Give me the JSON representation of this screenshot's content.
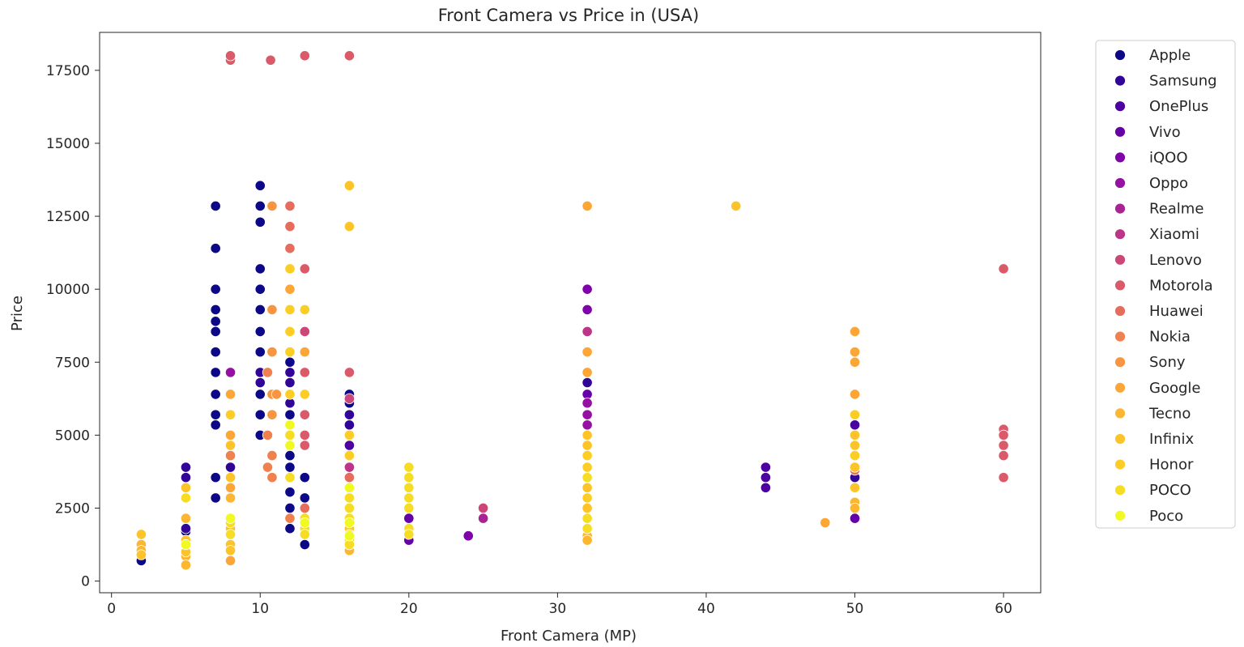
{
  "chart_data": {
    "type": "scatter",
    "title": "Front Camera vs Price in (USA)",
    "xlabel": "Front Camera (MP)",
    "ylabel": "Price",
    "xlim": [
      -0.8,
      62.5
    ],
    "ylim": [
      -400,
      18800
    ],
    "xticks": [
      0,
      10,
      20,
      30,
      40,
      50,
      60
    ],
    "yticks": [
      0,
      2500,
      5000,
      7500,
      10000,
      12500,
      15000,
      17500
    ],
    "grid": false,
    "legend_position": "outside-right",
    "marker_edge_color": "#ffffff",
    "series": [
      {
        "name": "Apple",
        "color": "#0d0887",
        "points": [
          [
            2,
            700
          ],
          [
            5,
            1700
          ],
          [
            7,
            2850
          ],
          [
            7,
            3550
          ],
          [
            7,
            5350
          ],
          [
            7,
            5700
          ],
          [
            7,
            6400
          ],
          [
            7,
            7150
          ],
          [
            7,
            7850
          ],
          [
            7,
            8550
          ],
          [
            7,
            8900
          ],
          [
            7,
            9300
          ],
          [
            7,
            10000
          ],
          [
            7,
            11400
          ],
          [
            7,
            12850
          ],
          [
            10,
            13550
          ],
          [
            10,
            12850
          ],
          [
            10,
            12300
          ],
          [
            10,
            10700
          ],
          [
            10,
            10000
          ],
          [
            10,
            9300
          ],
          [
            10,
            8550
          ],
          [
            10,
            7850
          ],
          [
            10,
            7150
          ],
          [
            10,
            6400
          ],
          [
            10,
            5700
          ],
          [
            10,
            5000
          ],
          [
            12,
            7500
          ],
          [
            12,
            6400
          ],
          [
            12,
            5700
          ],
          [
            12,
            5000
          ],
          [
            12,
            4650
          ],
          [
            12,
            4300
          ],
          [
            12,
            3900
          ],
          [
            12,
            3050
          ],
          [
            12,
            2500
          ],
          [
            12,
            1800
          ],
          [
            13,
            3550
          ],
          [
            13,
            2850
          ],
          [
            13,
            2150
          ],
          [
            13,
            1800
          ],
          [
            13,
            1250
          ],
          [
            16,
            6400
          ],
          [
            16,
            6100
          ],
          [
            32,
            5700
          ]
        ]
      },
      {
        "name": "Samsung",
        "color": "#310597",
        "points": [
          [
            5,
            3900
          ],
          [
            5,
            3550
          ],
          [
            5,
            1800
          ],
          [
            8,
            3900
          ],
          [
            10,
            7150
          ],
          [
            10,
            6800
          ],
          [
            12,
            7150
          ],
          [
            12,
            6800
          ],
          [
            12,
            6100
          ],
          [
            12,
            5350
          ],
          [
            16,
            5700
          ],
          [
            16,
            5350
          ],
          [
            32,
            6800
          ],
          [
            32,
            6400
          ],
          [
            32,
            6100
          ],
          [
            50,
            3550
          ]
        ]
      },
      {
        "name": "OnePlus",
        "color": "#4c02a1",
        "points": [
          [
            8,
            3550
          ],
          [
            16,
            5000
          ],
          [
            16,
            4650
          ],
          [
            32,
            7150
          ],
          [
            44,
            3900
          ],
          [
            44,
            3550
          ],
          [
            44,
            3200
          ],
          [
            50,
            5350
          ]
        ]
      },
      {
        "name": "Vivo",
        "color": "#6600a7",
        "points": [
          [
            16,
            4300
          ],
          [
            20,
            2150
          ],
          [
            20,
            1400
          ],
          [
            32,
            6400
          ],
          [
            32,
            5700
          ],
          [
            50,
            2150
          ]
        ]
      },
      {
        "name": "iQOO",
        "color": "#7e03a8",
        "points": [
          [
            24,
            1550
          ],
          [
            32,
            10000
          ],
          [
            32,
            9300
          ]
        ]
      },
      {
        "name": "Oppo",
        "color": "#9511a1",
        "points": [
          [
            8,
            7150
          ],
          [
            16,
            4300
          ],
          [
            16,
            3900
          ],
          [
            16,
            3550
          ],
          [
            32,
            6100
          ],
          [
            32,
            5700
          ],
          [
            32,
            5350
          ]
        ]
      },
      {
        "name": "Realme",
        "color": "#aa2395",
        "points": [
          [
            16,
            3200
          ],
          [
            16,
            2850
          ],
          [
            25,
            2150
          ]
        ]
      },
      {
        "name": "Xiaomi",
        "color": "#bc3587",
        "points": [
          [
            16,
            3900
          ],
          [
            32,
            8550
          ],
          [
            32,
            5000
          ],
          [
            50,
            3900
          ]
        ]
      },
      {
        "name": "Lenovo",
        "color": "#cc4778",
        "points": [
          [
            13,
            8550
          ],
          [
            16,
            6250
          ],
          [
            25,
            2500
          ],
          [
            32,
            4650
          ]
        ]
      },
      {
        "name": "Motorola",
        "color": "#da5a6a",
        "points": [
          [
            8,
            17850
          ],
          [
            8,
            18000
          ],
          [
            10.7,
            17850
          ],
          [
            13,
            18000
          ],
          [
            16,
            18000
          ],
          [
            13,
            10700
          ],
          [
            13,
            7150
          ],
          [
            13,
            5700
          ],
          [
            13,
            5000
          ],
          [
            13,
            4650
          ],
          [
            16,
            7150
          ],
          [
            60,
            10700
          ],
          [
            60,
            5200
          ],
          [
            60,
            5000
          ],
          [
            60,
            4650
          ],
          [
            60,
            4300
          ],
          [
            60,
            3550
          ]
        ]
      },
      {
        "name": "Huawei",
        "color": "#e66c5c",
        "points": [
          [
            12,
            12850
          ],
          [
            12,
            12150
          ],
          [
            12,
            11400
          ],
          [
            13,
            2500
          ],
          [
            16,
            3550
          ],
          [
            50,
            3800
          ]
        ]
      },
      {
        "name": "Nokia",
        "color": "#f0804e",
        "points": [
          [
            8,
            4300
          ],
          [
            10.5,
            7150
          ],
          [
            10.5,
            5000
          ],
          [
            10.5,
            3900
          ],
          [
            10.8,
            4300
          ],
          [
            10.8,
            3550
          ],
          [
            12,
            2150
          ],
          [
            16,
            2500
          ]
        ]
      },
      {
        "name": "Sony",
        "color": "#f89540",
        "points": [
          [
            10.8,
            12850
          ],
          [
            10.8,
            9300
          ],
          [
            10.8,
            7850
          ],
          [
            10.8,
            6400
          ],
          [
            11.1,
            6400
          ],
          [
            10.8,
            5700
          ]
        ]
      },
      {
        "name": "Google",
        "color": "#fca636",
        "points": [
          [
            8,
            6400
          ],
          [
            8,
            5000
          ],
          [
            8,
            3200
          ],
          [
            8,
            700
          ],
          [
            12,
            10000
          ],
          [
            13,
            7850
          ],
          [
            32,
            12850
          ],
          [
            32,
            7850
          ],
          [
            32,
            7150
          ],
          [
            50,
            8550
          ],
          [
            50,
            7850
          ],
          [
            50,
            7500
          ],
          [
            50,
            6400
          ],
          [
            48,
            2000
          ]
        ]
      },
      {
        "name": "Tecno",
        "color": "#fdb62f",
        "points": [
          [
            2,
            1250
          ],
          [
            2,
            1050
          ],
          [
            5,
            850
          ],
          [
            5,
            550
          ],
          [
            5,
            2150
          ],
          [
            8,
            2850
          ],
          [
            16,
            1050
          ],
          [
            16,
            1250
          ],
          [
            32,
            4300
          ],
          [
            32,
            3550
          ],
          [
            32,
            3200
          ],
          [
            32,
            2850
          ],
          [
            32,
            2500
          ],
          [
            32,
            2150
          ],
          [
            32,
            1800
          ],
          [
            32,
            1550
          ],
          [
            32,
            1400
          ],
          [
            50,
            4300
          ],
          [
            50,
            2700
          ],
          [
            50,
            2500
          ]
        ]
      },
      {
        "name": "Infinix",
        "color": "#fcc429",
        "points": [
          [
            2,
            1600
          ],
          [
            2,
            900
          ],
          [
            5,
            1400
          ],
          [
            5,
            1000
          ],
          [
            5,
            3200
          ],
          [
            8,
            4650
          ],
          [
            8,
            3550
          ],
          [
            8,
            1800
          ],
          [
            8,
            1250
          ],
          [
            8,
            1050
          ],
          [
            16,
            13550
          ],
          [
            16,
            12150
          ],
          [
            16,
            3200
          ],
          [
            16,
            2850
          ],
          [
            16,
            2150
          ],
          [
            16,
            1800
          ],
          [
            16,
            1400
          ],
          [
            32,
            5000
          ],
          [
            32,
            4650
          ],
          [
            32,
            3900
          ],
          [
            32,
            3200
          ],
          [
            32,
            2500
          ],
          [
            50,
            5000
          ],
          [
            50,
            4650
          ],
          [
            50,
            3900
          ],
          [
            50,
            3200
          ],
          [
            42,
            12850
          ]
        ]
      },
      {
        "name": "Honor",
        "color": "#fcce25",
        "points": [
          [
            12,
            10700
          ],
          [
            12,
            9300
          ],
          [
            12,
            8550
          ],
          [
            12,
            7850
          ],
          [
            12,
            6400
          ],
          [
            13,
            9300
          ],
          [
            13,
            6400
          ],
          [
            16,
            5000
          ],
          [
            16,
            4300
          ],
          [
            32,
            4300
          ],
          [
            32,
            3900
          ],
          [
            32,
            2850
          ],
          [
            50,
            5700
          ],
          [
            50,
            4300
          ],
          [
            8,
            5700
          ]
        ]
      },
      {
        "name": "POCO",
        "color": "#f6dd24",
        "points": [
          [
            5,
            2850
          ],
          [
            8,
            2150
          ],
          [
            8,
            2000
          ],
          [
            8,
            1600
          ],
          [
            12,
            5000
          ],
          [
            12,
            3550
          ],
          [
            13,
            2150
          ],
          [
            13,
            1800
          ],
          [
            13,
            1600
          ],
          [
            16,
            2850
          ],
          [
            16,
            2500
          ],
          [
            16,
            2150
          ],
          [
            16,
            2000
          ],
          [
            16,
            1600
          ],
          [
            16,
            1400
          ],
          [
            16,
            1250
          ],
          [
            20,
            3900
          ],
          [
            20,
            3550
          ],
          [
            20,
            3200
          ],
          [
            20,
            2850
          ],
          [
            20,
            2500
          ],
          [
            20,
            1800
          ],
          [
            20,
            1600
          ],
          [
            32,
            3550
          ],
          [
            32,
            2150
          ],
          [
            32,
            1800
          ]
        ]
      },
      {
        "name": "Poco",
        "color": "#f0f921",
        "points": [
          [
            5,
            1250
          ],
          [
            8,
            2150
          ],
          [
            12,
            5350
          ],
          [
            12,
            4650
          ],
          [
            13,
            2000
          ],
          [
            16,
            3200
          ],
          [
            16,
            2000
          ],
          [
            16,
            1550
          ]
        ]
      }
    ]
  }
}
